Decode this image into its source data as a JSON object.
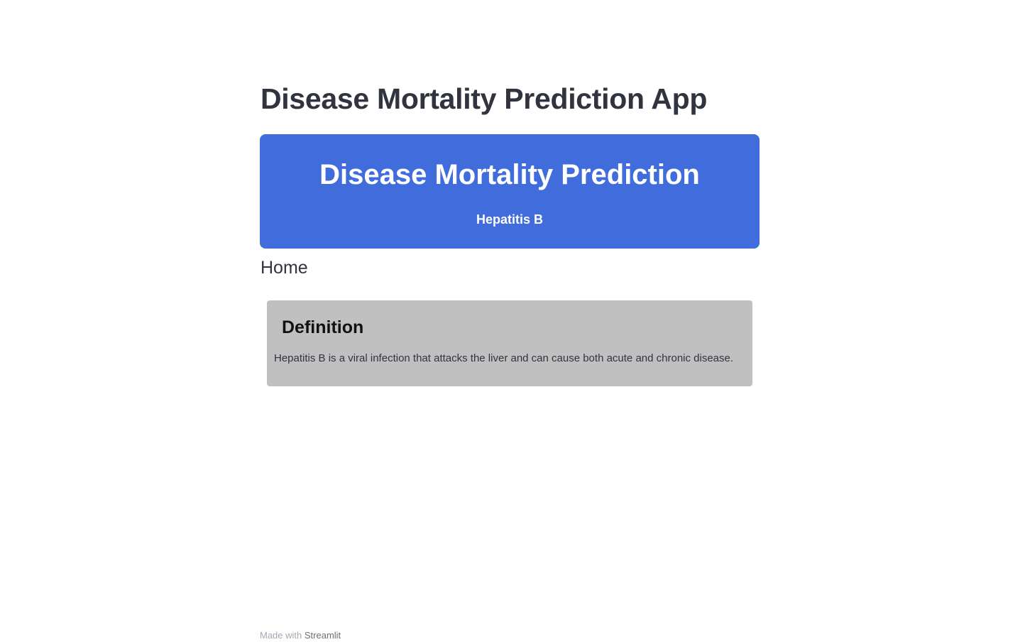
{
  "app": {
    "title": "Disease Mortality Prediction App"
  },
  "banner": {
    "title": "Disease Mortality Prediction",
    "subtitle": "Hepatitis B",
    "color": "#416cdb"
  },
  "page": {
    "heading": "Home"
  },
  "definition": {
    "title": "Definition",
    "text": "Hepatitis B is a viral infection that attacks the liver and can cause both acute and chronic disease.",
    "background": "#c0c0c0"
  },
  "footer": {
    "prefix": "Made with",
    "link_label": "Streamlit"
  }
}
